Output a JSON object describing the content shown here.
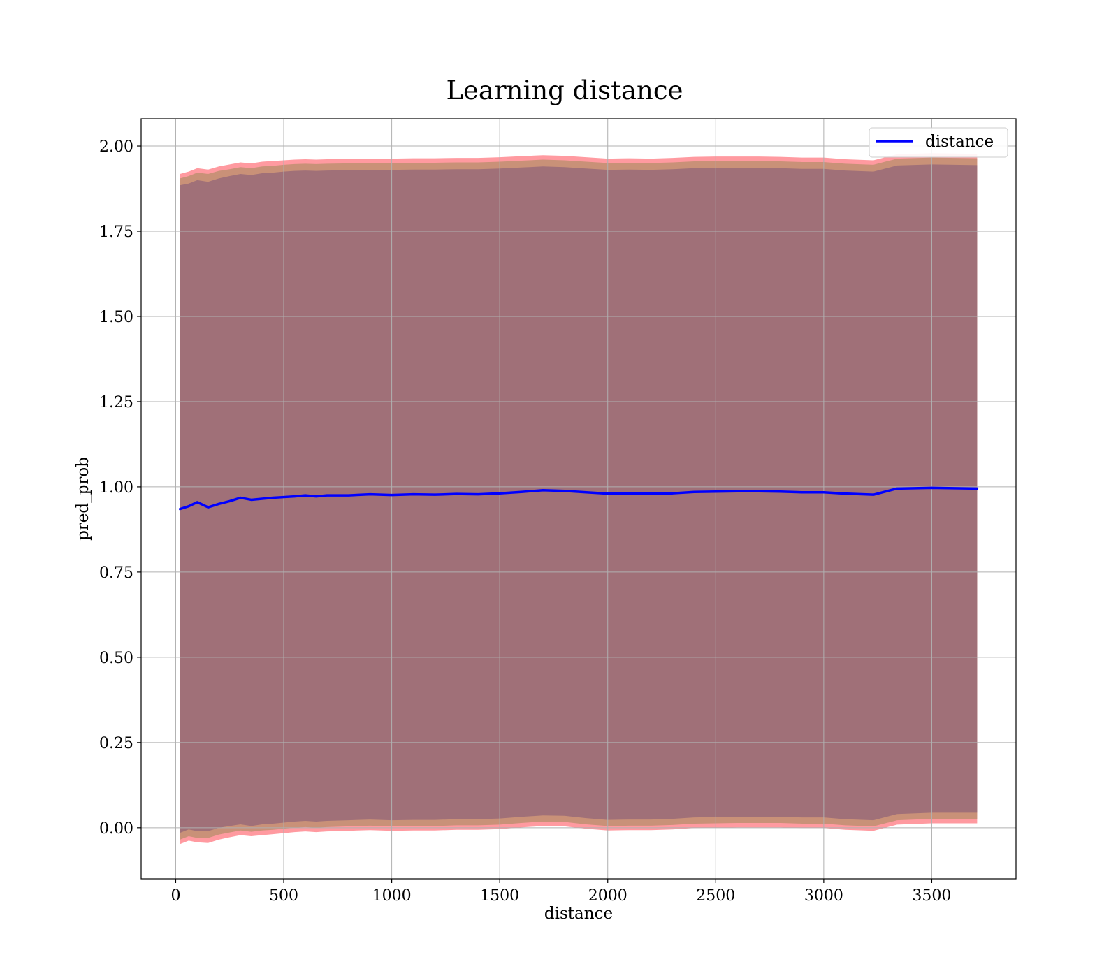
{
  "chart_data": {
    "type": "area",
    "title": "Learning distance",
    "xlabel": "distance",
    "ylabel": "pred_prob",
    "xlim": [
      -160,
      3890
    ],
    "ylim": [
      -0.15,
      2.08
    ],
    "x_ticks": [
      0,
      500,
      1000,
      1500,
      2000,
      2500,
      3000,
      3500
    ],
    "x_tick_labels": [
      "0",
      "500",
      "1000",
      "1500",
      "2000",
      "2500",
      "3000",
      "3500"
    ],
    "y_ticks": [
      0.0,
      0.25,
      0.5,
      0.75,
      1.0,
      1.25,
      1.5,
      1.75,
      2.0
    ],
    "y_tick_labels": [
      "0.00",
      "0.25",
      "0.50",
      "0.75",
      "1.00",
      "1.25",
      "1.50",
      "1.75",
      "2.00"
    ],
    "grid": true,
    "legend": {
      "position": "top-right",
      "entries": [
        "distance"
      ]
    },
    "colors": {
      "line": "#0000ff",
      "band_outer": "#ff9aa0",
      "band_middle": "#c99178",
      "band_inner": "#a07078"
    },
    "x": [
      20,
      60,
      100,
      150,
      200,
      250,
      300,
      350,
      400,
      450,
      500,
      550,
      600,
      650,
      700,
      800,
      900,
      1000,
      1100,
      1200,
      1300,
      1400,
      1500,
      1600,
      1700,
      1800,
      1900,
      2000,
      2100,
      2200,
      2300,
      2400,
      2500,
      2600,
      2700,
      2800,
      2900,
      3000,
      3100,
      3230,
      3340,
      3500,
      3710
    ],
    "series": [
      {
        "name": "distance",
        "values": [
          0.935,
          0.943,
          0.955,
          0.94,
          0.95,
          0.958,
          0.968,
          0.962,
          0.965,
          0.968,
          0.97,
          0.972,
          0.975,
          0.972,
          0.975,
          0.975,
          0.978,
          0.976,
          0.978,
          0.977,
          0.979,
          0.978,
          0.981,
          0.985,
          0.99,
          0.988,
          0.984,
          0.98,
          0.981,
          0.98,
          0.981,
          0.985,
          0.986,
          0.987,
          0.987,
          0.986,
          0.984,
          0.984,
          0.98,
          0.977,
          0.995,
          0.997,
          0.995
        ]
      }
    ],
    "band_inner_lower": [
      -0.015,
      -0.005,
      -0.01,
      -0.01,
      0.0,
      0.005,
      0.01,
      0.005,
      0.01,
      0.012,
      0.015,
      0.018,
      0.02,
      0.018,
      0.02,
      0.022,
      0.024,
      0.022,
      0.023,
      0.023,
      0.025,
      0.025,
      0.027,
      0.032,
      0.036,
      0.035,
      0.028,
      0.023,
      0.024,
      0.024,
      0.026,
      0.03,
      0.031,
      0.032,
      0.032,
      0.032,
      0.03,
      0.03,
      0.025,
      0.022,
      0.04,
      0.044,
      0.044
    ],
    "band_inner_upper": [
      1.885,
      1.89,
      1.9,
      1.895,
      1.905,
      1.912,
      1.918,
      1.915,
      1.92,
      1.922,
      1.925,
      1.927,
      1.928,
      1.927,
      1.928,
      1.929,
      1.93,
      1.93,
      1.931,
      1.931,
      1.932,
      1.932,
      1.934,
      1.937,
      1.94,
      1.938,
      1.934,
      1.93,
      1.931,
      1.93,
      1.932,
      1.935,
      1.936,
      1.936,
      1.936,
      1.935,
      1.933,
      1.933,
      1.928,
      1.925,
      1.943,
      1.946,
      1.944
    ],
    "band_mid_lower": [
      -0.035,
      -0.025,
      -0.03,
      -0.03,
      -0.02,
      -0.014,
      -0.008,
      -0.012,
      -0.008,
      -0.006,
      -0.003,
      0.0,
      0.002,
      0.0,
      0.002,
      0.004,
      0.006,
      0.004,
      0.005,
      0.005,
      0.007,
      0.007,
      0.009,
      0.014,
      0.018,
      0.017,
      0.01,
      0.005,
      0.006,
      0.006,
      0.008,
      0.012,
      0.013,
      0.014,
      0.014,
      0.014,
      0.012,
      0.012,
      0.007,
      0.004,
      0.022,
      0.026,
      0.026
    ],
    "band_mid_upper": [
      1.905,
      1.912,
      1.922,
      1.918,
      1.927,
      1.932,
      1.938,
      1.935,
      1.94,
      1.942,
      1.945,
      1.947,
      1.948,
      1.947,
      1.948,
      1.949,
      1.95,
      1.95,
      1.951,
      1.951,
      1.952,
      1.952,
      1.954,
      1.957,
      1.96,
      1.958,
      1.954,
      1.95,
      1.951,
      1.95,
      1.952,
      1.955,
      1.956,
      1.956,
      1.956,
      1.955,
      1.953,
      1.953,
      1.948,
      1.945,
      1.963,
      1.966,
      1.964
    ],
    "band_outer_lower": [
      -0.048,
      -0.038,
      -0.043,
      -0.045,
      -0.035,
      -0.028,
      -0.022,
      -0.025,
      -0.022,
      -0.019,
      -0.016,
      -0.013,
      -0.011,
      -0.013,
      -0.011,
      -0.009,
      -0.007,
      -0.009,
      -0.008,
      -0.008,
      -0.006,
      -0.006,
      -0.004,
      0.001,
      0.005,
      0.004,
      -0.003,
      -0.008,
      -0.007,
      -0.007,
      -0.005,
      -0.001,
      0.0,
      0.001,
      0.001,
      0.001,
      -0.001,
      -0.001,
      -0.006,
      -0.009,
      0.009,
      0.013,
      0.013
    ],
    "band_outer_upper": [
      1.918,
      1.925,
      1.935,
      1.931,
      1.94,
      1.946,
      1.952,
      1.949,
      1.954,
      1.956,
      1.958,
      1.96,
      1.961,
      1.96,
      1.961,
      1.962,
      1.963,
      1.963,
      1.964,
      1.964,
      1.965,
      1.965,
      1.967,
      1.97,
      1.973,
      1.971,
      1.967,
      1.963,
      1.964,
      1.963,
      1.965,
      1.968,
      1.969,
      1.969,
      1.969,
      1.968,
      1.966,
      1.966,
      1.961,
      1.958,
      1.976,
      1.979,
      1.977
    ]
  }
}
